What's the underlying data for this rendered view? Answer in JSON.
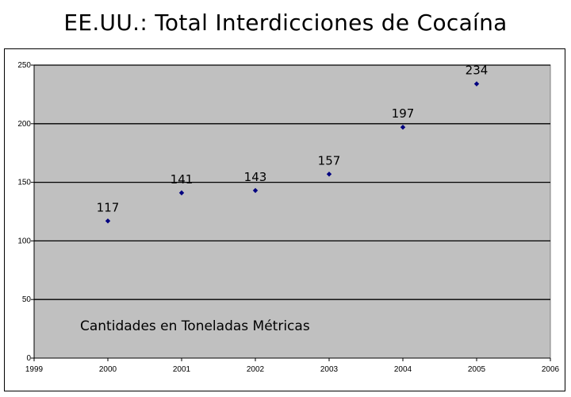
{
  "chart_data": {
    "type": "scatter",
    "title": "EE.UU.: Total Interdicciones de Cocaína",
    "xlabel": "",
    "ylabel": "",
    "x": [
      2000,
      2001,
      2002,
      2003,
      2004,
      2005
    ],
    "y": [
      117,
      141,
      143,
      157,
      197,
      234
    ],
    "data_labels": [
      "117",
      "141",
      "143",
      "157",
      "197",
      "234"
    ],
    "xlim": [
      1999,
      2006
    ],
    "ylim": [
      0,
      250
    ],
    "x_ticks": [
      "1999",
      "2000",
      "2001",
      "2002",
      "2003",
      "2004",
      "2005",
      "2006"
    ],
    "y_ticks": [
      "0",
      "50",
      "100",
      "150",
      "200",
      "250"
    ],
    "annotation": "Cantidades en Toneladas Métricas",
    "grid": "horizontal",
    "legend": "none",
    "colors": {
      "plot_background": "#c0c0c0",
      "marker": "#000080",
      "gridline": "#000000"
    }
  }
}
